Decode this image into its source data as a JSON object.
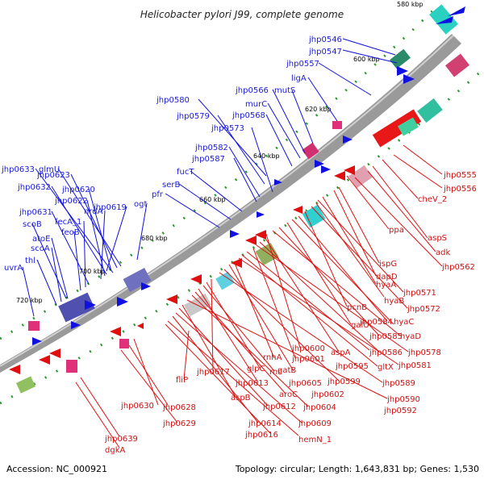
{
  "title": "Helicobacter pylori J99, complete genome",
  "footer": {
    "accession": "Accession: NC_000921",
    "summary": "Topology: circular; Length: 1,643,831 bp; Genes: 1,530"
  },
  "scale_labels": [
    "580 kbp",
    "600 kbp",
    "620 kbp",
    "640 kbp",
    "660 kbp",
    "680 kbp",
    "700 kbp",
    "720 kbp"
  ],
  "genes_plus": [
    "jhp0546",
    "jhp0547",
    "jhp0557",
    "ligA",
    "jhp0566",
    "mutS",
    "murC",
    "jhp0568",
    "jhp0580",
    "jhp0579",
    "jhp0573",
    "jhp0582",
    "jhp0587",
    "fucT",
    "serB",
    "pfr",
    "ogt",
    "glmU",
    "jhp0633",
    "jhp0623",
    "jhp0632",
    "jhp0620",
    "jhp0622",
    "jhp0619",
    "nrdA",
    "jhp0631",
    "fecA_1",
    "feoB",
    "scoB",
    "atoE",
    "scoA",
    "thl",
    "uvrA"
  ],
  "genes_minus": [
    "jhp0555",
    "jhp0556",
    "cheV_2",
    "ppa",
    "aspS",
    "adk",
    "jhp0562",
    "ispG",
    "dapD",
    "hyaA",
    "jhp0571",
    "hyaB",
    "jhp0572",
    "pcnB",
    "jhp0584",
    "hyaC",
    "galU",
    "jhp0585",
    "hyaD",
    "jhp0600",
    "aspA",
    "jhp0586",
    "jhp0578",
    "jhp0601",
    "jhp0595",
    "gltX",
    "jhp0581",
    "rnhA",
    "gatB",
    "jhp0599",
    "jhp0589",
    "jhp0617",
    "glpC",
    "rnc",
    "jhp0605",
    "jhp0602",
    "jhp0590",
    "fliP",
    "jhp0613",
    "aroC",
    "jhp0604",
    "jhp0592",
    "aspB",
    "jhp0612",
    "jhp0609",
    "jhp0614",
    "hemN_1",
    "jhp0630",
    "jhp0628",
    "jhp0629",
    "jhp0616",
    "jhp0639",
    "dgkA"
  ],
  "colors": {
    "plus_strand": "#1010e0",
    "minus_strand": "#e01010",
    "backbone": "#888888"
  }
}
